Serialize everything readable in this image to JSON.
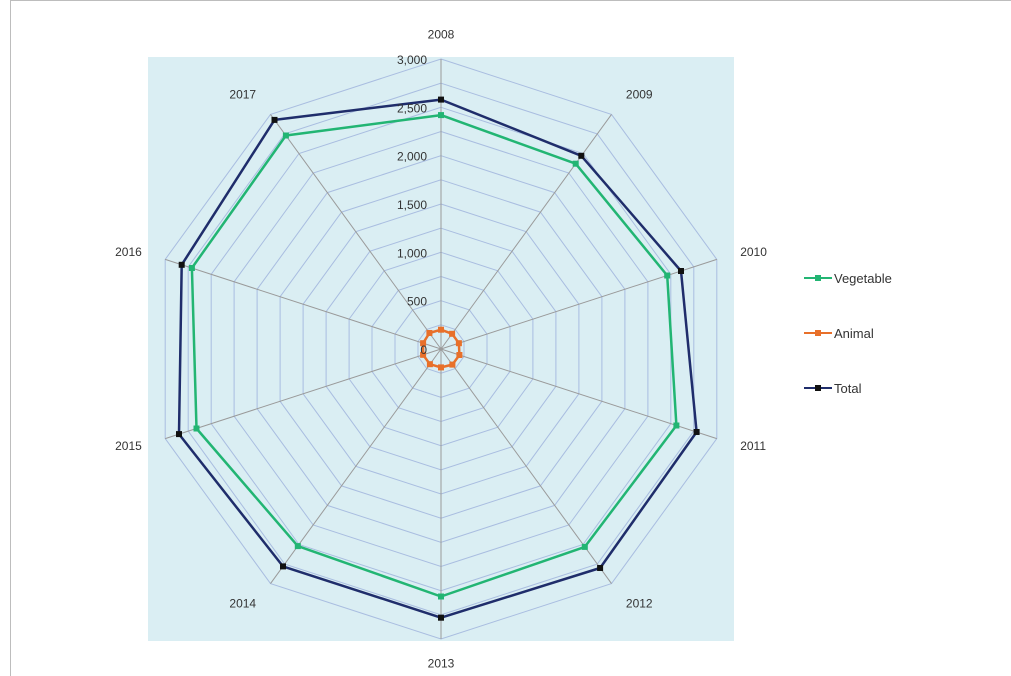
{
  "chart_data": {
    "type": "radar",
    "categories": [
      "2008",
      "2009",
      "2010",
      "2011",
      "2012",
      "2013",
      "2014",
      "2015",
      "2016",
      "2017"
    ],
    "radial_ticks": [
      "0",
      "500",
      "1,000",
      "1,500",
      "2,000",
      "2,500",
      "3,000"
    ],
    "rlim": [
      0,
      3000
    ],
    "series": [
      {
        "name": "Vegetable",
        "color": "#22b573",
        "values": [
          2420,
          2370,
          2460,
          2560,
          2530,
          2560,
          2520,
          2660,
          2710,
          2730
        ]
      },
      {
        "name": "Animal",
        "color": "#e8702a",
        "values": [
          200,
          195,
          195,
          200,
          200,
          190,
          195,
          195,
          195,
          205
        ]
      },
      {
        "name": "Total",
        "color": "#1f2d6b",
        "values": [
          2580,
          2470,
          2610,
          2780,
          2800,
          2780,
          2780,
          2850,
          2820,
          2930
        ]
      }
    ],
    "plot_background": "#daeef3",
    "grid": true,
    "legend_position": "right"
  }
}
